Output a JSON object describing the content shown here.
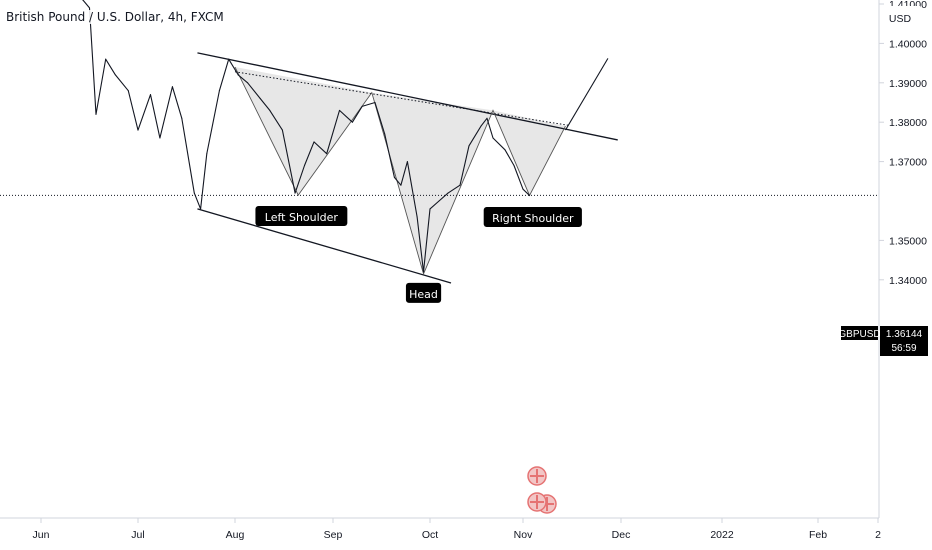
{
  "chart_title": "British Pound / U.S. Dollar, 4h, FXCM",
  "chart_data": {
    "type": "line",
    "symbol": "GBPUSD",
    "currency": "USD",
    "last_price": "1.36144",
    "countdown": "56:59",
    "ylim": [
      1.3335,
      1.4115
    ],
    "y_ticks": [
      "1.41000",
      "1.40000",
      "1.39000",
      "1.38000",
      "1.37000",
      "1.35000",
      "1.34000"
    ],
    "x_ticks": [
      "Jun",
      "Jul",
      "Aug",
      "Sep",
      "Oct",
      "Nov",
      "Dec",
      "2022",
      "Feb",
      "2"
    ],
    "series": [
      {
        "x": [
          "2021-05-24",
          "2021-05-28",
          "2021-06-01",
          "2021-06-04",
          "2021-06-08",
          "2021-06-11",
          "2021-06-14",
          "2021-06-16",
          "2021-06-18",
          "2021-06-21",
          "2021-06-24",
          "2021-06-28",
          "2021-07-01",
          "2021-07-05",
          "2021-07-08",
          "2021-07-12",
          "2021-07-15",
          "2021-07-19",
          "2021-07-21",
          "2021-07-23",
          "2021-07-27",
          "2021-07-30",
          "2021-08-02",
          "2021-08-05",
          "2021-08-09",
          "2021-08-12",
          "2021-08-16",
          "2021-08-20",
          "2021-08-23",
          "2021-08-26",
          "2021-08-30",
          "2021-09-03",
          "2021-09-07",
          "2021-09-10",
          "2021-09-14",
          "2021-09-17",
          "2021-09-20",
          "2021-09-22",
          "2021-09-24",
          "2021-09-27",
          "2021-09-29",
          "2021-10-01",
          "2021-10-04",
          "2021-10-07",
          "2021-10-11",
          "2021-10-14",
          "2021-10-18",
          "2021-10-20",
          "2021-10-22",
          "2021-10-26",
          "2021-10-29",
          "2021-11-01",
          "2021-11-03"
        ],
        "values": [
          1.415,
          1.414,
          1.418,
          1.412,
          1.417,
          1.413,
          1.411,
          1.409,
          1.382,
          1.396,
          1.392,
          1.388,
          1.378,
          1.387,
          1.376,
          1.389,
          1.381,
          1.362,
          1.358,
          1.372,
          1.388,
          1.396,
          1.392,
          1.39,
          1.386,
          1.383,
          1.378,
          1.362,
          1.369,
          1.375,
          1.372,
          1.383,
          1.38,
          1.384,
          1.385,
          1.377,
          1.366,
          1.364,
          1.37,
          1.356,
          1.342,
          1.358,
          1.36,
          1.362,
          1.364,
          1.374,
          1.379,
          1.381,
          1.376,
          1.373,
          1.369,
          1.363,
          1.3614
        ]
      }
    ],
    "annotations": [
      "Left Shoulder",
      "Head",
      "Right Shoulder"
    ],
    "drawings": {
      "upper_trendline": [
        [
          "2021-07-20",
          1.3976
        ],
        [
          "2021-11-30",
          1.3755
        ]
      ],
      "lower_trendline": [
        [
          "2021-07-20",
          1.358
        ],
        [
          "2021-10-08",
          1.3392
        ]
      ],
      "dotted_line": [
        [
          "2021-08-01",
          1.3928
        ],
        [
          "2021-11-15",
          1.3792
        ]
      ],
      "projection": [
        [
          "2021-11-14",
          1.378
        ],
        [
          "2021-11-27",
          1.3962
        ]
      ],
      "pattern_zigzag": [
        [
          "2021-08-01",
          1.394
        ],
        [
          "2021-08-21",
          1.3615
        ],
        [
          "2021-09-13",
          1.3875
        ],
        [
          "2021-09-29",
          1.3415
        ],
        [
          "2021-10-22",
          1.383
        ],
        [
          "2021-11-03",
          1.3614
        ],
        [
          "2021-11-14",
          1.379
        ]
      ]
    },
    "colors": {
      "line": "#131722",
      "fill": "#d7d7d7",
      "annotation_bg": "#000000",
      "marker": "#e57373"
    }
  }
}
